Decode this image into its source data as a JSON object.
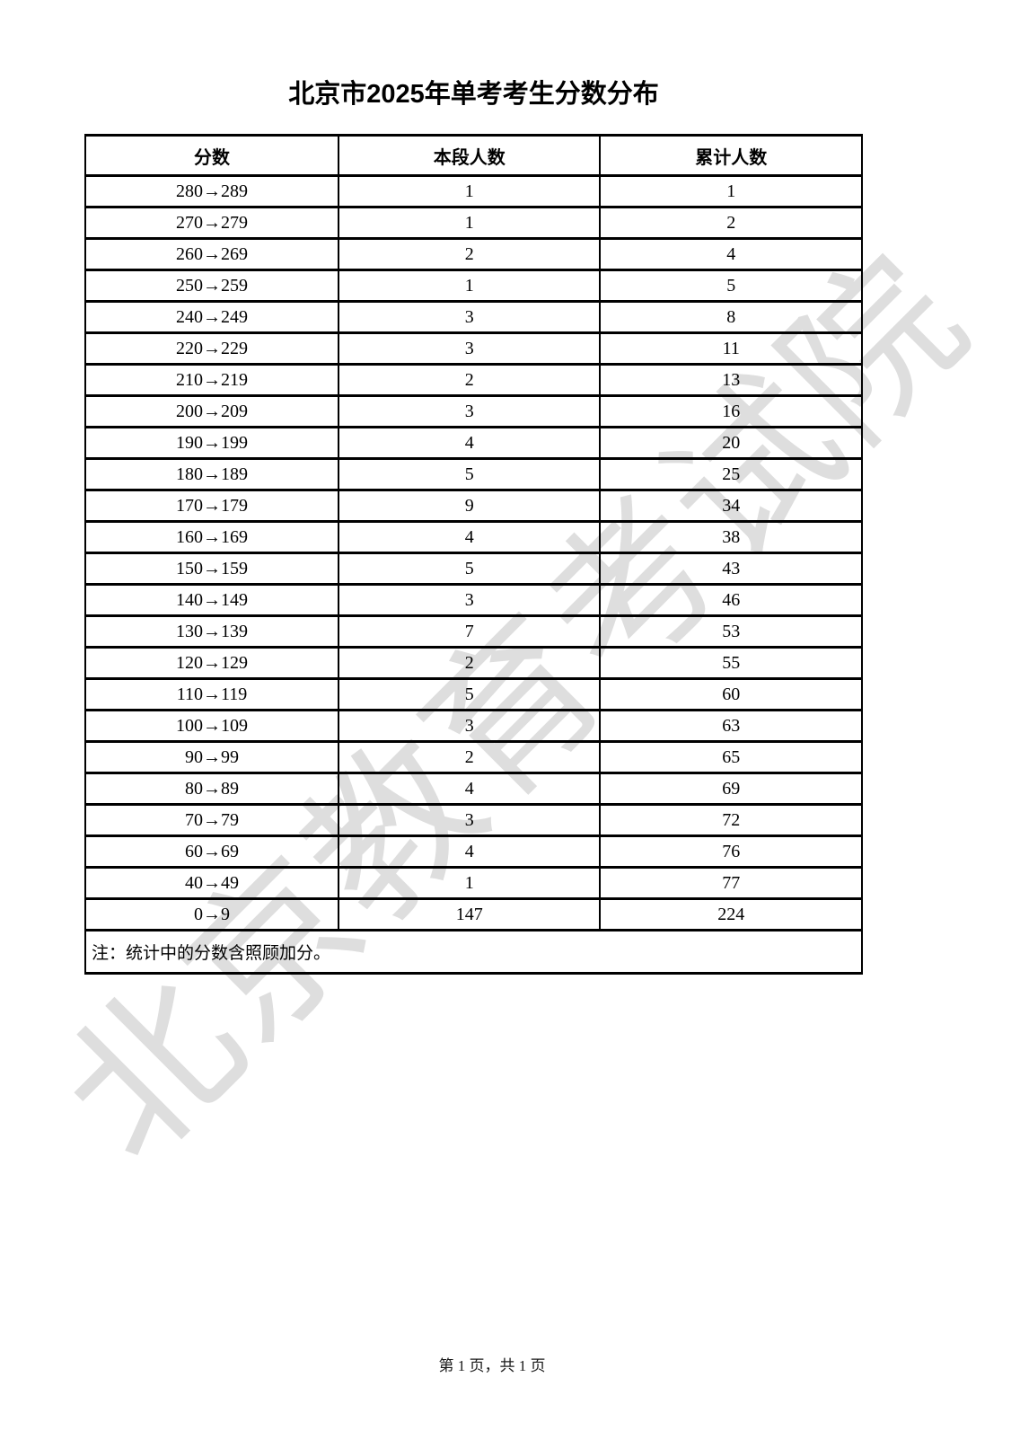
{
  "page": {
    "title": "北京市2025年单考考生分数分布",
    "watermark": "北京教育考试院",
    "footer": "第 1 页，共 1 页"
  },
  "colors": {
    "watermark_gray": "#dedede",
    "text": "#000000",
    "background": "#ffffff"
  },
  "table": {
    "headers": [
      "分数",
      "本段人数",
      "累计人数"
    ],
    "note": "注：统计中的分数含照顾加分。",
    "rows": [
      {
        "range": "280→289",
        "count": "1",
        "cumulative": "1"
      },
      {
        "range": "270→279",
        "count": "1",
        "cumulative": "2"
      },
      {
        "range": "260→269",
        "count": "2",
        "cumulative": "4"
      },
      {
        "range": "250→259",
        "count": "1",
        "cumulative": "5"
      },
      {
        "range": "240→249",
        "count": "3",
        "cumulative": "8"
      },
      {
        "range": "220→229",
        "count": "3",
        "cumulative": "11"
      },
      {
        "range": "210→219",
        "count": "2",
        "cumulative": "13"
      },
      {
        "range": "200→209",
        "count": "3",
        "cumulative": "16"
      },
      {
        "range": "190→199",
        "count": "4",
        "cumulative": "20"
      },
      {
        "range": "180→189",
        "count": "5",
        "cumulative": "25"
      },
      {
        "range": "170→179",
        "count": "9",
        "cumulative": "34"
      },
      {
        "range": "160→169",
        "count": "4",
        "cumulative": "38"
      },
      {
        "range": "150→159",
        "count": "5",
        "cumulative": "43"
      },
      {
        "range": "140→149",
        "count": "3",
        "cumulative": "46"
      },
      {
        "range": "130→139",
        "count": "7",
        "cumulative": "53"
      },
      {
        "range": "120→129",
        "count": "2",
        "cumulative": "55"
      },
      {
        "range": "110→119",
        "count": "5",
        "cumulative": "60"
      },
      {
        "range": "100→109",
        "count": "3",
        "cumulative": "63"
      },
      {
        "range": "90→99",
        "count": "2",
        "cumulative": "65"
      },
      {
        "range": "80→89",
        "count": "4",
        "cumulative": "69"
      },
      {
        "range": "70→79",
        "count": "3",
        "cumulative": "72"
      },
      {
        "range": "60→69",
        "count": "4",
        "cumulative": "76"
      },
      {
        "range": "40→49",
        "count": "1",
        "cumulative": "77"
      },
      {
        "range": "0→9",
        "count": "147",
        "cumulative": "224"
      }
    ]
  }
}
